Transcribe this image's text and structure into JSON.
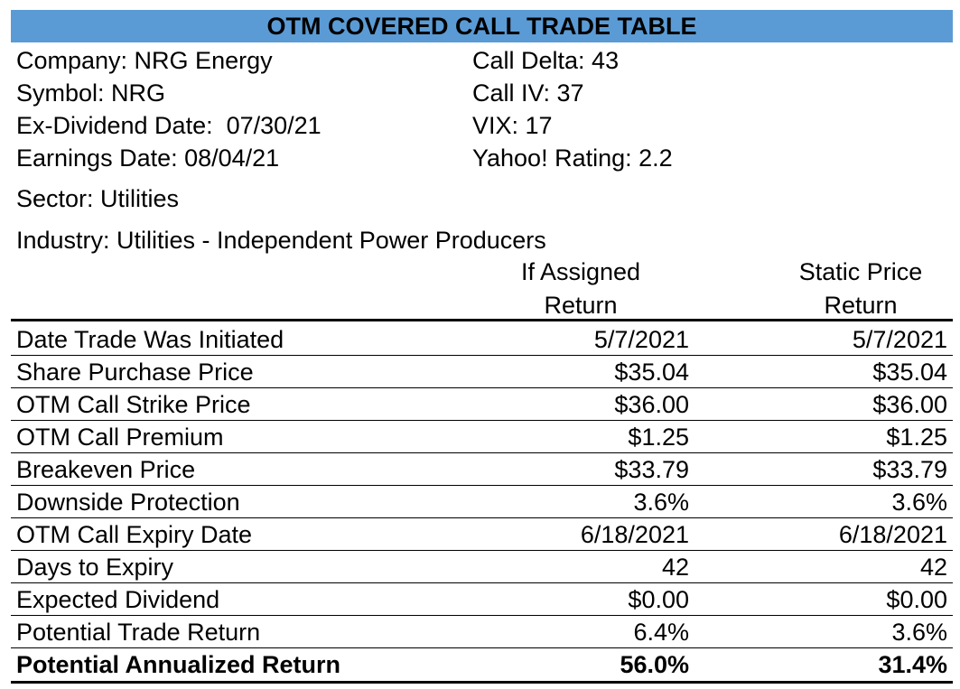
{
  "title": "OTM COVERED CALL TRADE TABLE",
  "info_left": [
    "Company: NRG Energy",
    "Symbol: NRG",
    "Ex-Dividend Date:  07/30/21",
    "Earnings Date: 08/04/21"
  ],
  "info_right": [
    "Call Delta: 43",
    "Call IV: 37",
    "VIX: 17",
    "Yahoo! Rating: 2.2"
  ],
  "sector": "Sector: Utilities",
  "industry": "Industry: Utilities - Independent Power Producers",
  "columns": {
    "assigned": [
      "If Assigned",
      "Return"
    ],
    "static": [
      "Static Price",
      "Return"
    ]
  },
  "rows": [
    {
      "label": "Date Trade Was Initiated",
      "assigned": "5/7/2021",
      "static": "5/7/2021"
    },
    {
      "label": "Share Purchase Price",
      "assigned": "$35.04",
      "static": "$35.04"
    },
    {
      "label": "OTM Call Strike Price",
      "assigned": "$36.00",
      "static": "$36.00"
    },
    {
      "label": "OTM Call Premium",
      "assigned": "$1.25",
      "static": "$1.25"
    },
    {
      "label": "Breakeven Price",
      "assigned": "$33.79",
      "static": "$33.79"
    },
    {
      "label": "Downside Protection",
      "assigned": "3.6%",
      "static": "3.6%"
    },
    {
      "label": "OTM Call Expiry Date",
      "assigned": "6/18/2021",
      "static": "6/18/2021"
    },
    {
      "label": "Days to Expiry",
      "assigned": "42",
      "static": "42"
    },
    {
      "label": "Expected Dividend",
      "assigned": "$0.00",
      "static": "$0.00"
    },
    {
      "label": "Potential Trade Return",
      "assigned": "6.4%",
      "static": "3.6%"
    },
    {
      "label": "Potential Annualized Return",
      "assigned": "56.0%",
      "static": "31.4%"
    }
  ],
  "colors": {
    "title_bg": "#5b9bd5"
  }
}
